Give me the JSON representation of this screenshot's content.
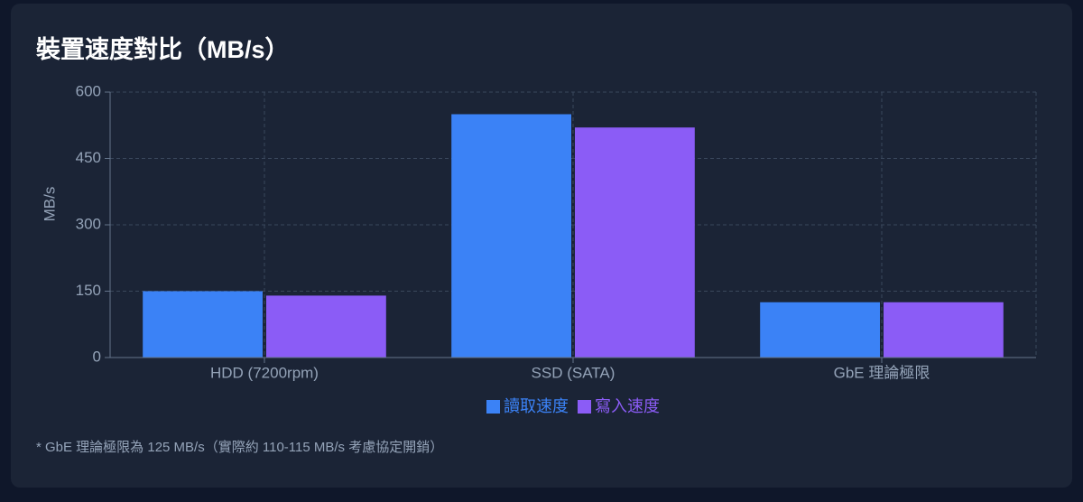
{
  "chart_data": {
    "type": "bar",
    "title": "裝置速度對比（MB/s）",
    "y_label": "MB/s",
    "categories": [
      "HDD (7200rpm)",
      "SSD (SATA)",
      "GbE 理論極限"
    ],
    "series": [
      {
        "name": "讀取速度",
        "color": "#3b82f6",
        "values": [
          150,
          550,
          125
        ]
      },
      {
        "name": "寫入速度",
        "color": "#8b5cf6",
        "values": [
          140,
          520,
          125
        ]
      }
    ],
    "ylim": [
      0,
      600
    ],
    "yticks": [
      0,
      150,
      300,
      450,
      600
    ],
    "grid": true,
    "legend": "bottom",
    "footnote": "* GbE 理論極限為 125 MB/s（實際約 110-115 MB/s 考慮協定開銷）"
  }
}
